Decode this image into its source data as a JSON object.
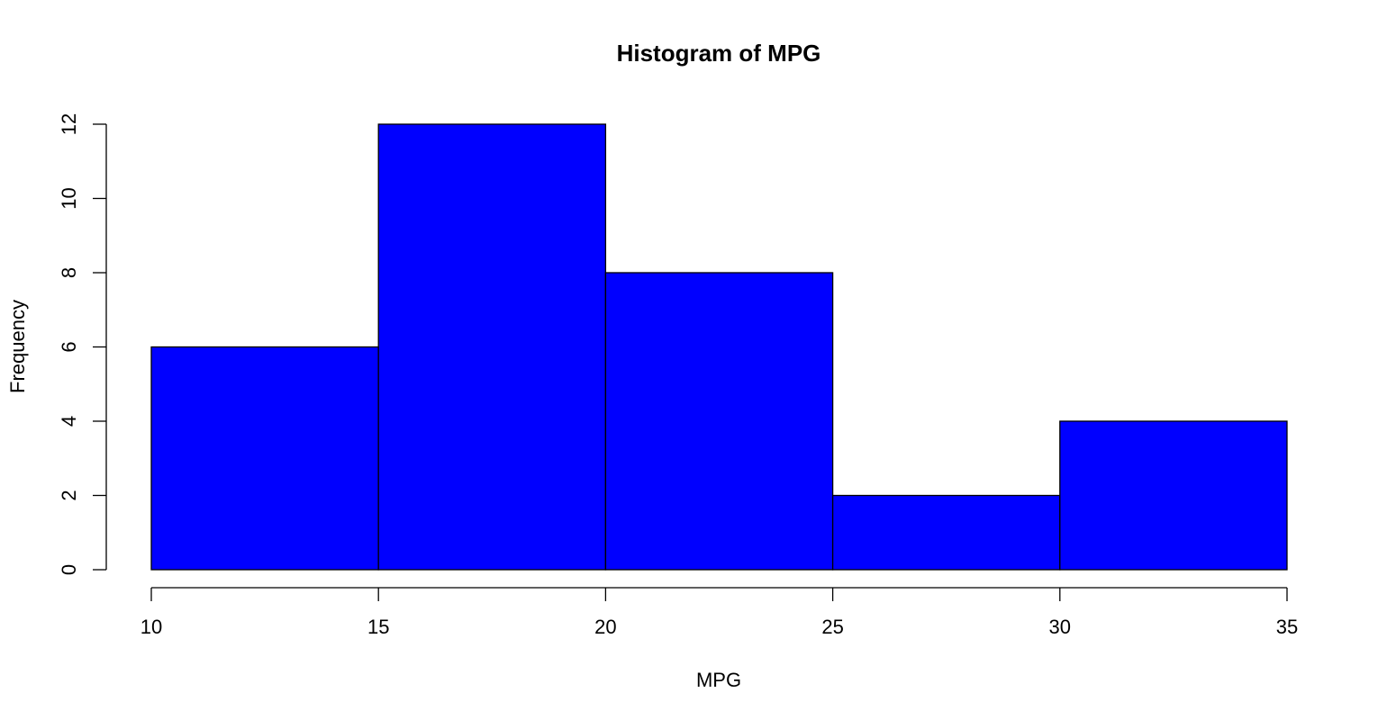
{
  "chart_data": {
    "type": "bar",
    "title": "Histogram of MPG",
    "xlabel": "MPG",
    "ylabel": "Frequency",
    "bins": [
      {
        "from": 10,
        "to": 15,
        "count": 6
      },
      {
        "from": 15,
        "to": 20,
        "count": 12
      },
      {
        "from": 20,
        "to": 25,
        "count": 8
      },
      {
        "from": 25,
        "to": 30,
        "count": 2
      },
      {
        "from": 30,
        "to": 35,
        "count": 4
      }
    ],
    "xlim": [
      10,
      35
    ],
    "ylim": [
      0,
      12
    ],
    "xticks": [
      10,
      15,
      20,
      25,
      30,
      35
    ],
    "yticks": [
      0,
      2,
      4,
      6,
      8,
      10,
      12
    ],
    "bar_color": "#0000ff",
    "grid": false,
    "legend": "none"
  }
}
